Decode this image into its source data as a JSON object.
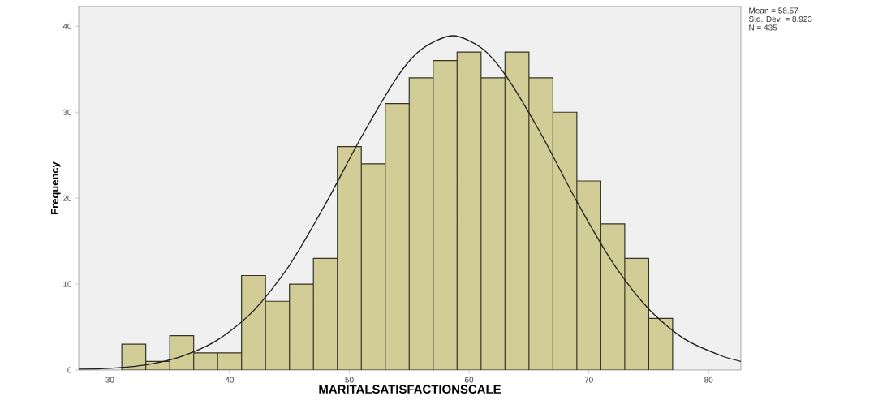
{
  "chart_data": {
    "type": "histogram",
    "xlabel": "MARITALSATISFACTIONSCALE",
    "ylabel": "Frequency",
    "bins": [
      31,
      33,
      35,
      37,
      39,
      41,
      43,
      45,
      47,
      49,
      51,
      53,
      55,
      57,
      59,
      61,
      63,
      65,
      67,
      69,
      71,
      73,
      75,
      77
    ],
    "values": [
      3,
      1,
      4,
      2,
      2,
      11,
      8,
      10,
      13,
      26,
      24,
      31,
      34,
      36,
      37,
      34,
      37,
      34,
      30,
      22,
      17,
      13,
      6
    ],
    "color": "#d2cc96",
    "series": [
      {
        "type": "line",
        "color": "#1a1a1a",
        "x": [
          27.4,
          30,
          33,
          36,
          39,
          42,
          45,
          48,
          51,
          54,
          56,
          58.6,
          61,
          63,
          66,
          69,
          72,
          75,
          78,
          81,
          82.7
        ],
        "values": [
          0.1,
          0.2,
          0.6,
          1.6,
          3.5,
          6.9,
          12.2,
          19.3,
          27.1,
          34.1,
          37.3,
          38.9,
          37.5,
          34.4,
          27.5,
          19.6,
          12.5,
          7.1,
          3.6,
          1.7,
          1.0
        ]
      }
    ],
    "xlim": [
      27.4,
      82.7
    ],
    "ylim": [
      0,
      42.3
    ],
    "xticks": [
      30,
      40,
      50,
      60,
      70,
      80
    ],
    "yticks": [
      0,
      10,
      20,
      30,
      40
    ],
    "annotations": [
      "Mean = 58.57",
      "Std. Dev. = 8.923",
      "N = 435"
    ]
  }
}
